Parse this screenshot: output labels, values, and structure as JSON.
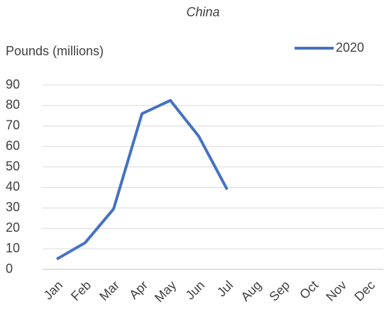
{
  "chart_data": {
    "type": "line",
    "subtitle": "China",
    "y_label": "Pounds (millions)",
    "categories": [
      "Jan",
      "Feb",
      "Mar",
      "Apr",
      "May",
      "Jun",
      "Jul",
      "Aug",
      "Sep",
      "Oct",
      "Nov",
      "Dec"
    ],
    "series": [
      {
        "name": "2020",
        "color": "#4472c4",
        "values": [
          5,
          13,
          29.5,
          76,
          82.5,
          65,
          39,
          null,
          null,
          null,
          null,
          null
        ]
      }
    ],
    "ylim": [
      0,
      90
    ],
    "yticks": [
      0,
      10,
      20,
      30,
      40,
      50,
      60,
      70,
      80,
      90
    ],
    "grid": true,
    "legend": "top-right"
  }
}
